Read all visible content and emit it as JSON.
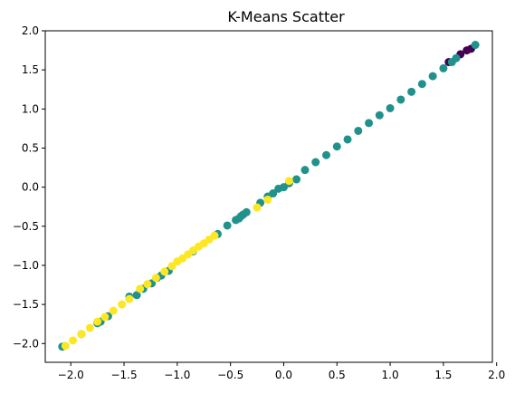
{
  "chart_data": {
    "type": "scatter",
    "title": "K-Means Scatter",
    "xlabel": "",
    "ylabel": "",
    "xlim": [
      -2.24,
      1.96
    ],
    "ylim": [
      -2.24,
      2.0
    ],
    "grid": false,
    "legend": "none",
    "xticks": [
      -2.0,
      -1.5,
      -1.0,
      -0.5,
      0.0,
      0.5,
      1.0,
      1.5,
      2.0
    ],
    "yticks": [
      -2.0,
      -1.5,
      -1.0,
      -0.5,
      0.0,
      0.5,
      1.0,
      1.5,
      2.0
    ],
    "xtick_labels": [
      "−2.0",
      "−1.5",
      "−1.0",
      "−0.5",
      "0.0",
      "0.5",
      "1.0",
      "1.5",
      "2.0"
    ],
    "ytick_labels": [
      "−2.0",
      "−1.5",
      "−1.0",
      "−0.5",
      "0.0",
      "0.5",
      "1.0",
      "1.5",
      "2.0"
    ],
    "series": [
      {
        "color": "#440154",
        "points": [
          [
            1.55,
            1.6
          ],
          [
            1.66,
            1.7
          ],
          [
            1.72,
            1.75
          ],
          [
            1.76,
            1.77
          ]
        ]
      },
      {
        "color": "#21918c",
        "points": [
          [
            -2.08,
            -2.04
          ],
          [
            -1.9,
            -1.88
          ],
          [
            -1.75,
            -1.74
          ],
          [
            -1.72,
            -1.72
          ],
          [
            -1.65,
            -1.65
          ],
          [
            -1.45,
            -1.4
          ],
          [
            -1.38,
            -1.38
          ],
          [
            -1.32,
            -1.3
          ],
          [
            -1.24,
            -1.23
          ],
          [
            -1.19,
            -1.16
          ],
          [
            -1.15,
            -1.13
          ],
          [
            -1.08,
            -1.07
          ],
          [
            -0.85,
            -0.82
          ],
          [
            -0.62,
            -0.6
          ],
          [
            -0.53,
            -0.49
          ],
          [
            -0.45,
            -0.42
          ],
          [
            -0.42,
            -0.4
          ],
          [
            -0.4,
            -0.37
          ],
          [
            -0.38,
            -0.35
          ],
          [
            -0.35,
            -0.32
          ],
          [
            -0.22,
            -0.2
          ],
          [
            -0.15,
            -0.12
          ],
          [
            -0.1,
            -0.08
          ],
          [
            -0.05,
            -0.02
          ],
          [
            0.0,
            0.0
          ],
          [
            0.05,
            0.05
          ],
          [
            0.12,
            0.1
          ],
          [
            0.2,
            0.22
          ],
          [
            0.3,
            0.32
          ],
          [
            0.4,
            0.41
          ],
          [
            0.5,
            0.52
          ],
          [
            0.6,
            0.61
          ],
          [
            0.7,
            0.72
          ],
          [
            0.8,
            0.82
          ],
          [
            0.9,
            0.92
          ],
          [
            1.0,
            1.01
          ],
          [
            1.1,
            1.12
          ],
          [
            1.2,
            1.22
          ],
          [
            1.3,
            1.32
          ],
          [
            1.4,
            1.42
          ],
          [
            1.5,
            1.52
          ],
          [
            1.58,
            1.6
          ],
          [
            1.62,
            1.65
          ],
          [
            1.8,
            1.82
          ]
        ]
      },
      {
        "color": "#fde725",
        "points": [
          [
            -2.05,
            -2.03
          ],
          [
            -1.98,
            -1.96
          ],
          [
            -1.9,
            -1.88
          ],
          [
            -1.82,
            -1.8
          ],
          [
            -1.75,
            -1.72
          ],
          [
            -1.68,
            -1.66
          ],
          [
            -1.6,
            -1.58
          ],
          [
            -1.52,
            -1.5
          ],
          [
            -1.45,
            -1.43
          ],
          [
            -1.35,
            -1.3
          ],
          [
            -1.28,
            -1.24
          ],
          [
            -1.2,
            -1.16
          ],
          [
            -1.12,
            -1.08
          ],
          [
            -1.05,
            -1.01
          ],
          [
            -1.0,
            -0.95
          ],
          [
            -0.95,
            -0.91
          ],
          [
            -0.9,
            -0.86
          ],
          [
            -0.85,
            -0.81
          ],
          [
            -0.8,
            -0.76
          ],
          [
            -0.75,
            -0.72
          ],
          [
            -0.7,
            -0.67
          ],
          [
            -0.65,
            -0.62
          ],
          [
            -0.25,
            -0.26
          ],
          [
            -0.15,
            -0.16
          ],
          [
            0.05,
            0.08
          ]
        ]
      }
    ]
  }
}
